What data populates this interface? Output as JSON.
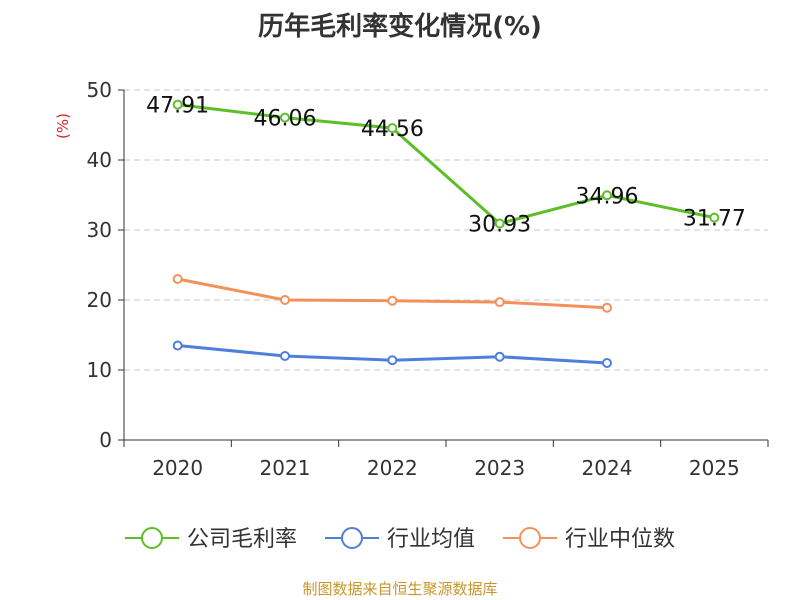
{
  "chart_data": {
    "type": "line",
    "title": "历年毛利率变化情况(%)",
    "ylabel": "(%)",
    "xlabel": "",
    "categories": [
      "2020",
      "2021",
      "2022",
      "2023",
      "2024",
      "2025"
    ],
    "ylim": [
      0,
      50
    ],
    "yticks": [
      0,
      10,
      20,
      30,
      40,
      50
    ],
    "grid": true,
    "legend_position": "bottom",
    "series": [
      {
        "name": "公司毛利率",
        "color": "#5cbf27",
        "values": [
          47.91,
          46.06,
          44.56,
          30.93,
          34.96,
          31.77
        ],
        "labels": [
          "47.91",
          "46.06",
          "44.56",
          "30.93",
          "34.96",
          "31.77"
        ]
      },
      {
        "name": "行业均值",
        "color": "#4e7fdc",
        "values": [
          13.5,
          12.0,
          11.4,
          11.9,
          11.0,
          null
        ]
      },
      {
        "name": "行业中位数",
        "color": "#f4915a",
        "values": [
          23.0,
          20.0,
          19.9,
          19.7,
          18.9,
          null
        ]
      }
    ]
  },
  "source": "制图数据来自恒生聚源数据库"
}
